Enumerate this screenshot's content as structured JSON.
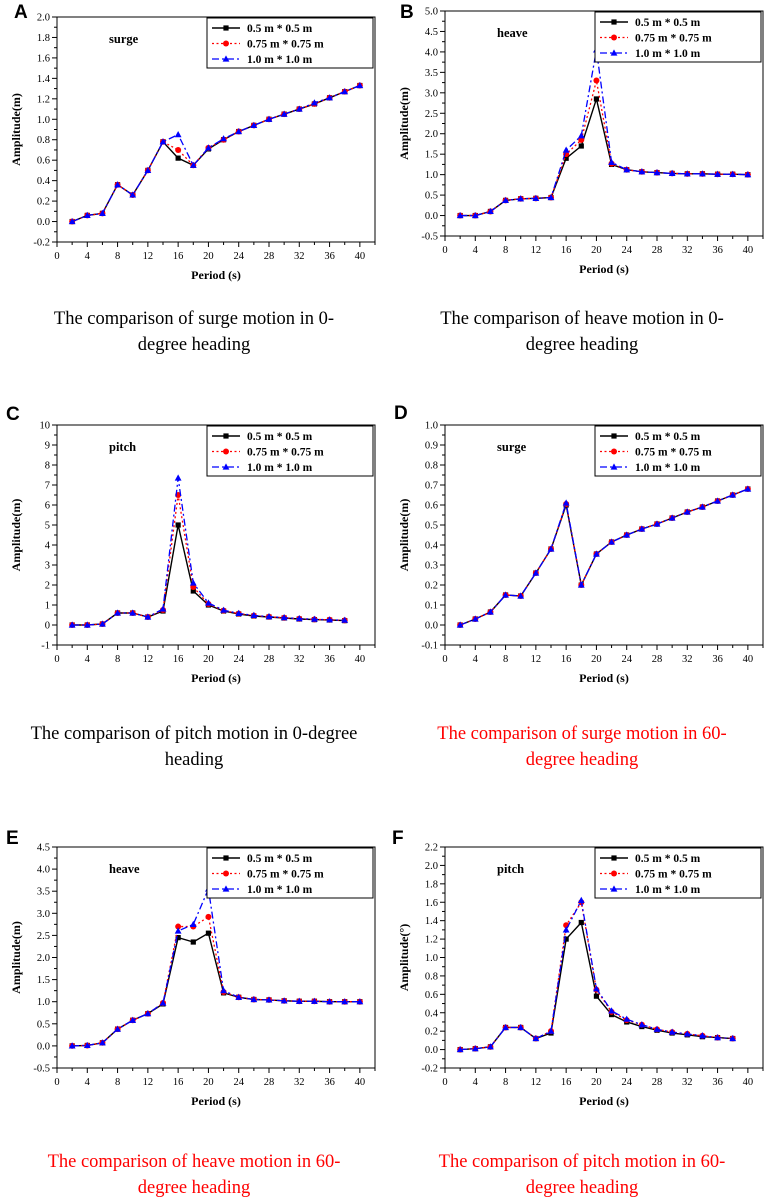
{
  "chart_data": [
    {
      "id": "A",
      "type": "line",
      "plot_label": "surge",
      "xlabel": "Period (s)",
      "ylabel": "Amplitude(m)",
      "xlim": [
        0,
        42
      ],
      "xticks": [
        0,
        4,
        8,
        12,
        16,
        20,
        24,
        28,
        32,
        36,
        40
      ],
      "ylim": [
        -0.2,
        2.0
      ],
      "yticks": [
        "-0.2",
        "0.0",
        "0.2",
        "0.4",
        "0.6",
        "0.8",
        "1.0",
        "1.2",
        "1.4",
        "1.6",
        "1.8",
        "2.0"
      ],
      "x": [
        2,
        4,
        6,
        8,
        10,
        12,
        14,
        16,
        18,
        20,
        22,
        24,
        26,
        28,
        30,
        32,
        34,
        36,
        38,
        40
      ],
      "series": [
        {
          "name": "0.5 m * 0.5 m",
          "color": "#000000",
          "values": [
            0,
            0.06,
            0.08,
            0.36,
            0.26,
            0.5,
            0.78,
            0.62,
            0.55,
            0.71,
            0.8,
            0.88,
            0.94,
            1.0,
            1.05,
            1.1,
            1.15,
            1.21,
            1.27,
            1.33
          ]
        },
        {
          "name": "0.75 m * 0.75 m",
          "color": "#ff0000",
          "values": [
            0,
            0.06,
            0.08,
            0.36,
            0.26,
            0.5,
            0.78,
            0.7,
            0.55,
            0.72,
            0.8,
            0.88,
            0.94,
            1.0,
            1.05,
            1.1,
            1.15,
            1.21,
            1.27,
            1.33
          ]
        },
        {
          "name": "1.0 m * 1.0 m",
          "color": "#0000ff",
          "values": [
            0,
            0.06,
            0.08,
            0.36,
            0.26,
            0.5,
            0.78,
            0.85,
            0.55,
            0.72,
            0.81,
            0.88,
            0.94,
            1.0,
            1.05,
            1.1,
            1.16,
            1.21,
            1.27,
            1.33
          ]
        }
      ],
      "caption": [
        "The comparison of surge motion in 0-",
        "degree heading"
      ],
      "caption_color": "#000000"
    },
    {
      "id": "B",
      "type": "line",
      "plot_label": "heave",
      "xlabel": "Period (s)",
      "ylabel": "Amplitude(m)",
      "xlim": [
        0,
        42
      ],
      "xticks": [
        0,
        4,
        8,
        12,
        16,
        20,
        24,
        28,
        32,
        36,
        40
      ],
      "ylim": [
        -0.5,
        5.0
      ],
      "yticks": [
        "-0.5",
        "0.0",
        "0.5",
        "1.0",
        "1.5",
        "2.0",
        "2.5",
        "3.0",
        "3.5",
        "4.0",
        "4.5",
        "5.0"
      ],
      "x": [
        2,
        4,
        6,
        8,
        10,
        12,
        14,
        16,
        18,
        20,
        22,
        24,
        26,
        28,
        30,
        32,
        34,
        36,
        38,
        40
      ],
      "series": [
        {
          "name": "0.5 m * 0.5 m",
          "color": "#000000",
          "values": [
            0,
            0,
            0.1,
            0.37,
            0.41,
            0.42,
            0.44,
            1.4,
            1.7,
            2.85,
            1.25,
            1.12,
            1.07,
            1.05,
            1.03,
            1.02,
            1.02,
            1.01,
            1.01,
            1.0
          ]
        },
        {
          "name": "0.75 m * 0.75 m",
          "color": "#ff0000",
          "values": [
            0,
            0,
            0.1,
            0.37,
            0.41,
            0.42,
            0.44,
            1.5,
            1.85,
            3.3,
            1.27,
            1.12,
            1.07,
            1.05,
            1.03,
            1.02,
            1.02,
            1.01,
            1.01,
            1.0
          ]
        },
        {
          "name": "1.0 m * 1.0 m",
          "color": "#0000ff",
          "values": [
            0,
            0,
            0.1,
            0.37,
            0.41,
            0.42,
            0.44,
            1.6,
            1.95,
            4.05,
            1.3,
            1.12,
            1.07,
            1.05,
            1.03,
            1.02,
            1.02,
            1.01,
            1.01,
            1.0
          ]
        }
      ],
      "caption": [
        "The comparison of heave motion in 0-",
        "degree heading"
      ],
      "caption_color": "#000000"
    },
    {
      "id": "C",
      "type": "line",
      "plot_label": "pitch",
      "xlabel": "Period (s)",
      "ylabel": "Amplitude(m)",
      "xlim": [
        0,
        42
      ],
      "xticks": [
        0,
        4,
        8,
        12,
        16,
        20,
        24,
        28,
        32,
        36,
        40
      ],
      "ylim": [
        -1,
        10
      ],
      "yticks": [
        "-1",
        "0",
        "1",
        "2",
        "3",
        "4",
        "5",
        "6",
        "7",
        "8",
        "9",
        "10"
      ],
      "x": [
        2,
        4,
        6,
        8,
        10,
        12,
        14,
        16,
        18,
        20,
        22,
        24,
        26,
        28,
        30,
        32,
        34,
        36,
        38
      ],
      "series": [
        {
          "name": "0.5 m * 0.5 m",
          "color": "#000000",
          "values": [
            0,
            0,
            0.05,
            0.6,
            0.6,
            0.4,
            0.7,
            5.0,
            1.7,
            1.0,
            0.7,
            0.55,
            0.45,
            0.4,
            0.35,
            0.3,
            0.27,
            0.25,
            0.22
          ]
        },
        {
          "name": "0.75 m * 0.75 m",
          "color": "#ff0000",
          "values": [
            0,
            0,
            0.05,
            0.6,
            0.6,
            0.4,
            0.75,
            6.5,
            1.9,
            1.05,
            0.72,
            0.57,
            0.47,
            0.41,
            0.36,
            0.31,
            0.28,
            0.26,
            0.23
          ]
        },
        {
          "name": "1.0 m * 1.0 m",
          "color": "#0000ff",
          "values": [
            0,
            0,
            0.05,
            0.6,
            0.6,
            0.4,
            0.8,
            7.35,
            2.1,
            1.1,
            0.74,
            0.58,
            0.48,
            0.42,
            0.37,
            0.32,
            0.29,
            0.26,
            0.24
          ]
        }
      ],
      "caption": [
        "The comparison of pitch motion in 0-degree",
        "heading"
      ],
      "caption_color": "#000000"
    },
    {
      "id": "D",
      "type": "line",
      "plot_label": "surge",
      "xlabel": "Period (s)",
      "ylabel": "Amplitude(m)",
      "xlim": [
        0,
        42
      ],
      "xticks": [
        0,
        4,
        8,
        12,
        16,
        20,
        24,
        28,
        32,
        36,
        40
      ],
      "ylim": [
        -0.1,
        1.0
      ],
      "yticks": [
        "-0.1",
        "0.0",
        "0.1",
        "0.2",
        "0.3",
        "0.4",
        "0.5",
        "0.6",
        "0.7",
        "0.8",
        "0.9",
        "1.0"
      ],
      "x": [
        2,
        4,
        6,
        8,
        10,
        12,
        14,
        16,
        18,
        20,
        22,
        24,
        26,
        28,
        30,
        32,
        34,
        36,
        38,
        40
      ],
      "series": [
        {
          "name": "0.5 m * 0.5 m",
          "color": "#000000",
          "values": [
            0,
            0.03,
            0.065,
            0.15,
            0.145,
            0.26,
            0.38,
            0.6,
            0.2,
            0.355,
            0.415,
            0.45,
            0.48,
            0.505,
            0.535,
            0.565,
            0.59,
            0.62,
            0.65,
            0.68
          ]
        },
        {
          "name": "0.75 m * 0.75 m",
          "color": "#ff0000",
          "values": [
            0,
            0.03,
            0.065,
            0.15,
            0.145,
            0.26,
            0.38,
            0.605,
            0.2,
            0.355,
            0.415,
            0.45,
            0.48,
            0.505,
            0.535,
            0.565,
            0.59,
            0.62,
            0.65,
            0.68
          ]
        },
        {
          "name": "1.0 m * 1.0 m",
          "color": "#0000ff",
          "values": [
            0,
            0.03,
            0.065,
            0.15,
            0.145,
            0.26,
            0.38,
            0.61,
            0.2,
            0.355,
            0.415,
            0.45,
            0.48,
            0.505,
            0.535,
            0.565,
            0.59,
            0.62,
            0.65,
            0.68
          ]
        }
      ],
      "caption": [
        "The comparison of surge motion in 60-",
        "degree heading"
      ],
      "caption_color": "#ff0000"
    },
    {
      "id": "E",
      "type": "line",
      "plot_label": "heave",
      "xlabel": "Period (s)",
      "ylabel": "Amplitude(m)",
      "xlim": [
        0,
        42
      ],
      "xticks": [
        0,
        4,
        8,
        12,
        16,
        20,
        24,
        28,
        32,
        36,
        40
      ],
      "ylim": [
        -0.5,
        4.5
      ],
      "yticks": [
        "-0.5",
        "0.0",
        "0.5",
        "1.0",
        "1.5",
        "2.0",
        "2.5",
        "3.0",
        "3.5",
        "4.0",
        "4.5"
      ],
      "x": [
        2,
        4,
        6,
        8,
        10,
        12,
        14,
        16,
        18,
        20,
        22,
        24,
        26,
        28,
        30,
        32,
        34,
        36,
        38,
        40
      ],
      "series": [
        {
          "name": "0.5 m * 0.5 m",
          "color": "#000000",
          "values": [
            0,
            0.01,
            0.07,
            0.38,
            0.58,
            0.73,
            0.95,
            2.45,
            2.35,
            2.55,
            1.2,
            1.1,
            1.05,
            1.04,
            1.02,
            1.01,
            1.01,
            1.0,
            1.0,
            1.0
          ]
        },
        {
          "name": "0.75 m * 0.75 m",
          "color": "#ff0000",
          "values": [
            0,
            0.01,
            0.07,
            0.38,
            0.58,
            0.73,
            0.97,
            2.7,
            2.7,
            2.92,
            1.22,
            1.1,
            1.05,
            1.04,
            1.02,
            1.01,
            1.01,
            1.0,
            1.0,
            1.0
          ]
        },
        {
          "name": "1.0 m * 1.0 m",
          "color": "#0000ff",
          "values": [
            0,
            0.01,
            0.07,
            0.38,
            0.58,
            0.73,
            0.97,
            2.6,
            2.75,
            3.55,
            1.25,
            1.1,
            1.05,
            1.04,
            1.02,
            1.01,
            1.01,
            1.0,
            1.0,
            1.0
          ]
        }
      ],
      "caption": [
        "The comparison of heave motion in 60-",
        "degree heading"
      ],
      "caption_color": "#ff0000"
    },
    {
      "id": "F",
      "type": "line",
      "plot_label": "pitch",
      "xlabel": "Period (s)",
      "ylabel": "Amplitude(°)",
      "xlim": [
        0,
        42
      ],
      "xticks": [
        0,
        4,
        8,
        12,
        16,
        20,
        24,
        28,
        32,
        36,
        40
      ],
      "ylim": [
        -0.2,
        2.2
      ],
      "yticks": [
        "-0.2",
        "0.0",
        "0.2",
        "0.4",
        "0.6",
        "0.8",
        "1.0",
        "1.2",
        "1.4",
        "1.6",
        "1.8",
        "2.0",
        "2.2"
      ],
      "x": [
        2,
        4,
        6,
        8,
        10,
        12,
        14,
        16,
        18,
        20,
        22,
        24,
        26,
        28,
        30,
        32,
        34,
        36,
        38
      ],
      "series": [
        {
          "name": "0.5 m * 0.5 m",
          "color": "#000000",
          "values": [
            0,
            0.01,
            0.03,
            0.24,
            0.24,
            0.12,
            0.18,
            1.2,
            1.38,
            0.58,
            0.38,
            0.3,
            0.25,
            0.21,
            0.18,
            0.16,
            0.14,
            0.13,
            0.12
          ]
        },
        {
          "name": "0.75 m * 0.75 m",
          "color": "#ff0000",
          "values": [
            0,
            0.01,
            0.03,
            0.24,
            0.24,
            0.12,
            0.2,
            1.35,
            1.6,
            0.65,
            0.41,
            0.32,
            0.27,
            0.22,
            0.19,
            0.17,
            0.15,
            0.13,
            0.12
          ]
        },
        {
          "name": "1.0 m * 1.0 m",
          "color": "#0000ff",
          "values": [
            0,
            0.01,
            0.03,
            0.24,
            0.24,
            0.12,
            0.2,
            1.3,
            1.62,
            0.66,
            0.42,
            0.33,
            0.27,
            0.22,
            0.19,
            0.17,
            0.15,
            0.13,
            0.12
          ]
        }
      ],
      "caption": [
        "The comparison of pitch motion in 60-",
        "degree heading"
      ],
      "caption_color": "#ff0000"
    }
  ]
}
